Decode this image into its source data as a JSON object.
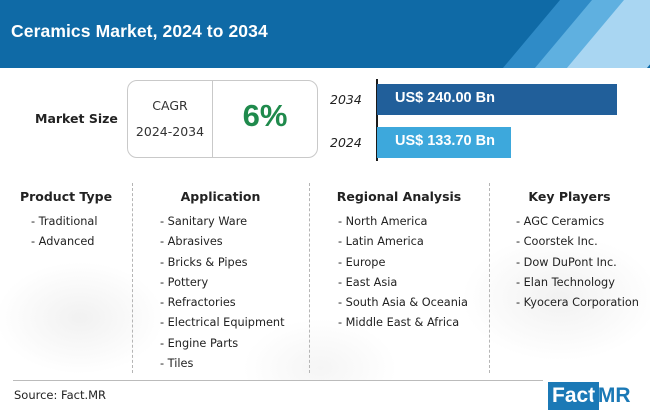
{
  "header": {
    "title": "Ceramics Market, 2024 to 2034"
  },
  "market_size": {
    "label": "Market Size",
    "cagr_label": "CAGR",
    "cagr_period": "2024-2034",
    "cagr_value": "6%"
  },
  "chart_data": {
    "type": "bar",
    "orientation": "horizontal",
    "categories": [
      "2034",
      "2024"
    ],
    "values": [
      240.0,
      133.7
    ],
    "value_labels": [
      "US$ 240.00 Bn",
      "US$ 133.70 Bn"
    ],
    "unit": "US$ Bn",
    "colors": [
      "#215f9a",
      "#3da8dc"
    ],
    "title": "",
    "xlabel": "",
    "ylabel": "",
    "xlim": [
      0,
      240
    ]
  },
  "segments": [
    {
      "title": "Product Type",
      "items": [
        "- Traditional",
        "- Advanced"
      ]
    },
    {
      "title": "Application",
      "items": [
        "- Sanitary Ware",
        "- Abrasives",
        "- Bricks & Pipes",
        "- Pottery",
        "- Refractories",
        "- Electrical Equipment",
        "- Engine Parts",
        "- Tiles"
      ]
    },
    {
      "title": "Regional Analysis",
      "items": [
        "- North America",
        "- Latin America",
        "- Europe",
        "- East Asia",
        "- South Asia & Oceania",
        "- Middle East & Africa"
      ]
    },
    {
      "title": "Key Players",
      "items": [
        "- AGC Ceramics",
        "- Coorstek Inc.",
        "- Dow DuPont Inc.",
        "- Elan Technology",
        "- Kyocera Corporation"
      ]
    }
  ],
  "footer": {
    "source": "Source: Fact.MR",
    "logo_fact": "Fact",
    "logo_mr": ".MR"
  },
  "colors": {
    "header_bg": "#0f6aa6",
    "accent_green": "#1f8a4c",
    "brand_blue": "#1b79b6"
  }
}
